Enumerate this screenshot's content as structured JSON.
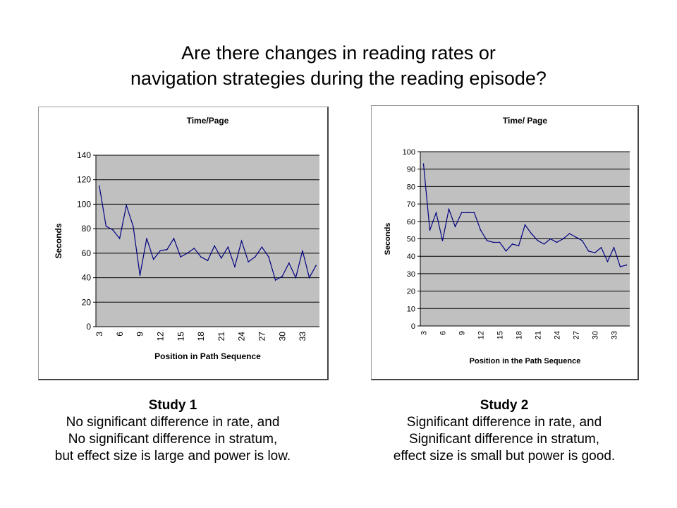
{
  "slide": {
    "title_line1": "Are there changes in reading rates or",
    "title_line2": "navigation strategies during the reading episode?"
  },
  "captions": [
    {
      "study": "Study 1",
      "line1": "No significant difference in rate, and",
      "line2": "No significant difference in stratum,",
      "line3": "but effect size is large and power is low."
    },
    {
      "study": "Study 2",
      "line1": "Significant difference in rate, and",
      "line2": "Significant difference in stratum,",
      "line3": "effect size is small but power is good."
    }
  ],
  "colors": {
    "plot_background": "#c0c0c0",
    "series_line": "#000080",
    "gridline": "#000000"
  },
  "chart_data": [
    {
      "type": "line",
      "title": "Time/Page",
      "xlabel": "Position in Path Sequence",
      "ylabel": "Seconds",
      "ylim": [
        0,
        140
      ],
      "yticks": [
        0,
        20,
        40,
        60,
        80,
        100,
        120,
        140
      ],
      "x": [
        3,
        4,
        5,
        6,
        7,
        8,
        9,
        10,
        11,
        12,
        13,
        14,
        15,
        16,
        17,
        18,
        19,
        20,
        21,
        22,
        23,
        24,
        25,
        26,
        27,
        28,
        29,
        30,
        31,
        32,
        33,
        34,
        35
      ],
      "xticks": [
        3,
        6,
        9,
        12,
        15,
        18,
        21,
        24,
        27,
        30,
        33
      ],
      "grid": true,
      "legend": "none",
      "series": [
        {
          "values": [
            115,
            82,
            79,
            72,
            99,
            82,
            42,
            72,
            55,
            62,
            63,
            72,
            57,
            60,
            64,
            57,
            54,
            66,
            56,
            65,
            49,
            70,
            53,
            57,
            65,
            57,
            38,
            41,
            52,
            40,
            62,
            40,
            50
          ]
        }
      ]
    },
    {
      "type": "line",
      "title": "Time/ Page",
      "xlabel": "Position in the Path Sequence",
      "ylabel": "Seconds",
      "ylim": [
        0,
        100
      ],
      "yticks": [
        0,
        10,
        20,
        30,
        40,
        50,
        60,
        70,
        80,
        90,
        100
      ],
      "x": [
        3,
        4,
        5,
        6,
        7,
        8,
        9,
        10,
        11,
        12,
        13,
        14,
        15,
        16,
        17,
        18,
        19,
        20,
        21,
        22,
        23,
        24,
        25,
        26,
        27,
        28,
        29,
        30,
        31,
        32,
        33,
        34,
        35
      ],
      "xticks": [
        3,
        6,
        9,
        12,
        15,
        18,
        21,
        24,
        27,
        30,
        33
      ],
      "grid": true,
      "legend": "none",
      "series": [
        {
          "values": [
            93,
            55,
            65,
            49,
            67,
            57,
            65,
            65,
            65,
            55,
            49,
            48,
            48,
            43,
            47,
            46,
            58,
            53,
            49,
            47,
            50,
            48,
            50,
            53,
            51,
            49,
            43,
            42,
            45,
            37,
            45,
            34,
            35
          ]
        }
      ]
    }
  ]
}
